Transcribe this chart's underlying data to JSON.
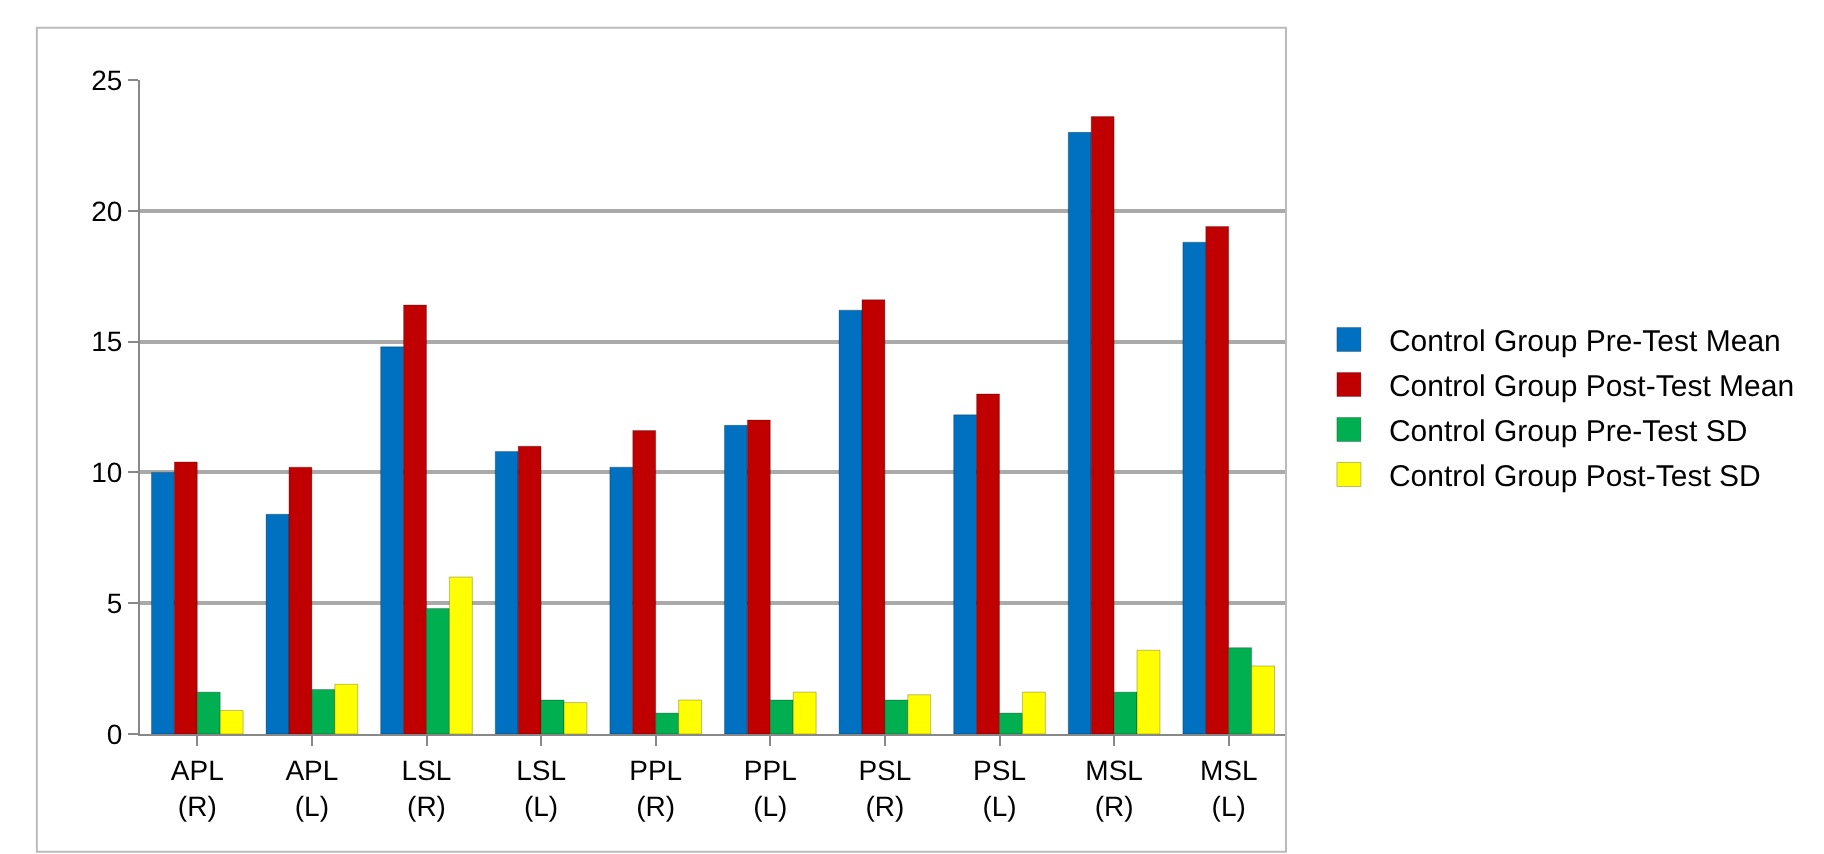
{
  "chart_data": {
    "type": "bar",
    "categories": [
      "APL (R)",
      "APL (L)",
      "LSL (R)",
      "LSL (L)",
      "PPL (R)",
      "PPL (L)",
      "PSL (R)",
      "PSL (L)",
      "MSL (R)",
      "MSL (L)"
    ],
    "series": [
      {
        "name": "Control Group Pre-Test Mean",
        "color": "#0070c0",
        "values": [
          10.0,
          8.4,
          14.8,
          10.8,
          10.2,
          11.8,
          16.2,
          12.2,
          23.0,
          18.8
        ]
      },
      {
        "name": "Control Group Post-Test Mean",
        "color": "#c00000",
        "values": [
          10.4,
          10.2,
          16.4,
          11.0,
          11.6,
          12.0,
          16.6,
          13.0,
          23.6,
          19.4
        ]
      },
      {
        "name": "Control Group Pre-Test SD",
        "color": "#00b050",
        "values": [
          1.6,
          1.7,
          4.8,
          1.3,
          0.8,
          1.3,
          1.3,
          0.8,
          1.6,
          3.3
        ]
      },
      {
        "name": "Control Group Post-Test SD",
        "color": "#ffff00",
        "values": [
          0.9,
          1.9,
          6.0,
          1.2,
          1.3,
          1.6,
          1.5,
          1.6,
          3.2,
          2.6
        ]
      }
    ],
    "ylim": [
      0,
      25
    ],
    "yticks": [
      0,
      5,
      10,
      15,
      20,
      25
    ],
    "grid": "y",
    "legend": "right"
  }
}
